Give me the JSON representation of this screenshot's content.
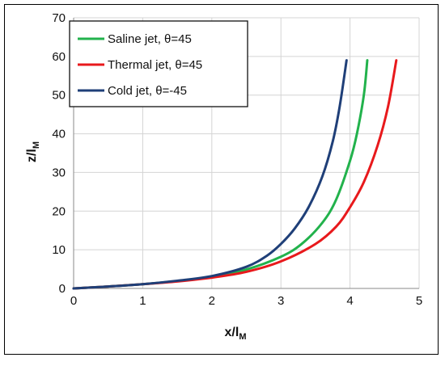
{
  "chart_data": {
    "type": "line",
    "title": "",
    "xlabel": {
      "main": "x/l",
      "sub": "M"
    },
    "ylabel": {
      "main": "z/l",
      "sub": "M"
    },
    "xlim": [
      0,
      5
    ],
    "ylim": [
      0,
      70
    ],
    "x_ticks": [
      "0",
      "1",
      "2",
      "3",
      "4",
      "5"
    ],
    "y_ticks": [
      "0",
      "10",
      "20",
      "30",
      "40",
      "50",
      "60",
      "70"
    ],
    "grid": true,
    "legend_position": "top-left",
    "series": [
      {
        "name": "Saline jet, θ=45",
        "color": "#22b24c",
        "points": [
          [
            0,
            0
          ],
          [
            0.5,
            0.5
          ],
          [
            1,
            1.1
          ],
          [
            1.5,
            1.9
          ],
          [
            2,
            3.0
          ],
          [
            2.5,
            4.9
          ],
          [
            3,
            8.2
          ],
          [
            3.3,
            11.5
          ],
          [
            3.6,
            17
          ],
          [
            3.8,
            23
          ],
          [
            4.0,
            33
          ],
          [
            4.1,
            40
          ],
          [
            4.2,
            50
          ],
          [
            4.25,
            59
          ]
        ]
      },
      {
        "name": "Thermal jet, θ=45",
        "color": "#e8191c",
        "points": [
          [
            0,
            0
          ],
          [
            0.5,
            0.5
          ],
          [
            1,
            1.1
          ],
          [
            1.5,
            1.8
          ],
          [
            2,
            2.8
          ],
          [
            2.5,
            4.3
          ],
          [
            3,
            7.0
          ],
          [
            3.5,
            11.5
          ],
          [
            3.8,
            16
          ],
          [
            4.0,
            21
          ],
          [
            4.2,
            27.5
          ],
          [
            4.4,
            37
          ],
          [
            4.55,
            47
          ],
          [
            4.67,
            59
          ]
        ]
      },
      {
        "name": "Cold jet, θ=-45",
        "color": "#1f3f78",
        "points": [
          [
            0,
            0
          ],
          [
            0.5,
            0.5
          ],
          [
            1,
            1.1
          ],
          [
            1.5,
            2.0
          ],
          [
            2,
            3.2
          ],
          [
            2.5,
            5.6
          ],
          [
            2.8,
            8.5
          ],
          [
            3,
            11.5
          ],
          [
            3.2,
            15.5
          ],
          [
            3.4,
            21
          ],
          [
            3.6,
            29
          ],
          [
            3.75,
            38
          ],
          [
            3.85,
            47
          ],
          [
            3.95,
            59
          ]
        ]
      }
    ]
  }
}
